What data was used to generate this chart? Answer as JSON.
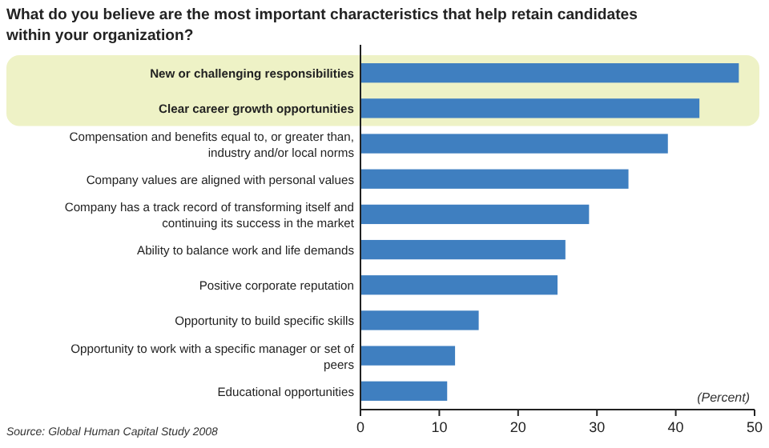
{
  "chart_data": {
    "type": "bar",
    "orientation": "horizontal",
    "title": "What do you believe are the most important characteristics that help retain candidates within your organization?",
    "categories": [
      "New or challenging responsibilities",
      "Clear career growth opportunities",
      "Compensation and benefits equal to, or greater than, industry and/or local norms",
      "Company values are aligned with personal values",
      "Company has a track record of transforming itself and continuing its success in the market",
      "Ability to balance work and life demands",
      "Positive corporate reputation",
      "Opportunity to build specific skills",
      "Opportunity to work with a specific manager or set of peers",
      "Educational opportunities"
    ],
    "values": [
      48,
      43,
      39,
      34,
      29,
      26,
      25,
      15,
      12,
      11
    ],
    "color": "#3f7fc0",
    "xlim": [
      0,
      50
    ],
    "xticks": [
      0,
      10,
      20,
      30,
      40,
      50
    ],
    "bands": [
      {
        "axis": "y",
        "from": "New or challenging responsibilities",
        "to": "Clear career growth opportunities",
        "color": "#eef2c6"
      }
    ],
    "annotations": [
      "(Percent)",
      "Source: Global Human Capital Study 2008"
    ]
  }
}
